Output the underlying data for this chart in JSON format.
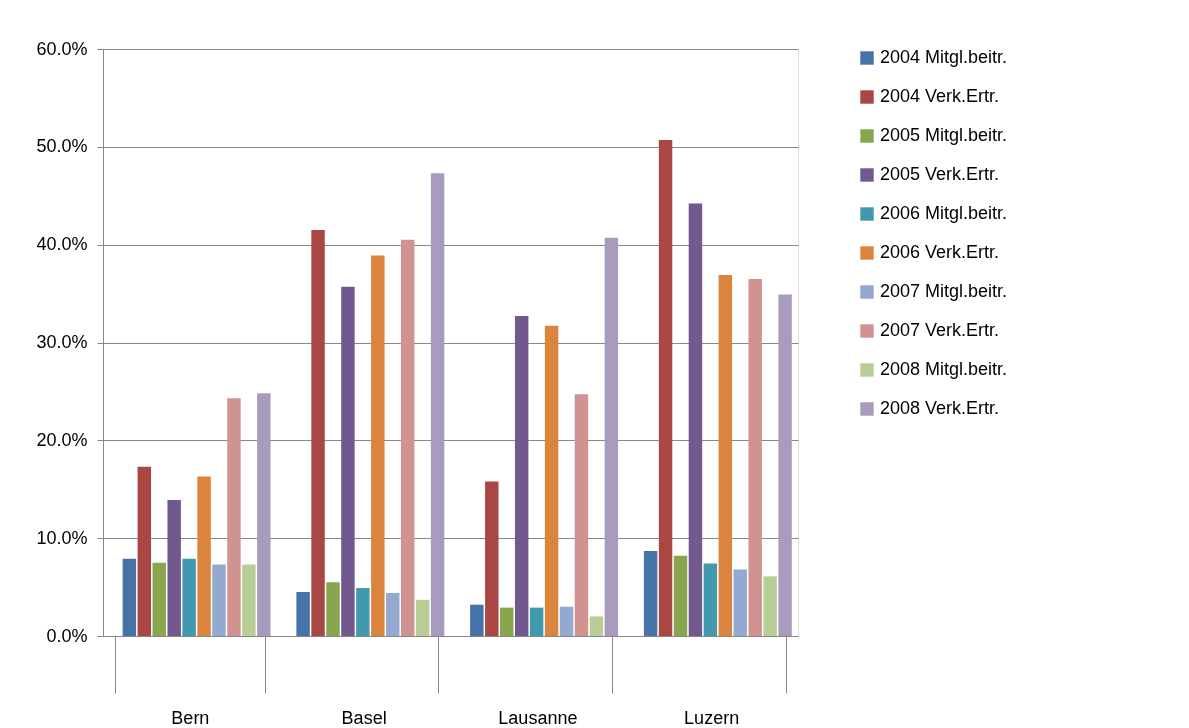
{
  "chart_data": {
    "type": "bar",
    "categories": [
      "Bern",
      "Basel",
      "Lausanne",
      "Luzern"
    ],
    "ylim": [
      0,
      60
    ],
    "yticks": [
      {
        "value": 0,
        "label": "0.0%"
      },
      {
        "value": 10,
        "label": "10.0%"
      },
      {
        "value": 20,
        "label": "20.0%"
      },
      {
        "value": 30,
        "label": "30.0%"
      },
      {
        "value": 40,
        "label": "40.0%"
      },
      {
        "value": 50,
        "label": "50.0%"
      },
      {
        "value": 60,
        "label": "60.0%"
      }
    ],
    "grid": "y",
    "legend": "right",
    "series": [
      {
        "name": "2004 Mitgl.beitr.",
        "color": "#4572a7",
        "values": [
          7.9,
          4.5,
          3.2,
          8.7
        ]
      },
      {
        "name": "2004 Verk.Ertr.",
        "color": "#aa4643",
        "values": [
          17.3,
          41.5,
          15.8,
          50.7
        ]
      },
      {
        "name": "2005 Mitgl.beitr.",
        "color": "#89a54e",
        "values": [
          7.5,
          5.5,
          2.9,
          8.2
        ]
      },
      {
        "name": "2005 Verk.Ertr.",
        "color": "#71588f",
        "values": [
          13.9,
          35.7,
          32.7,
          44.2
        ]
      },
      {
        "name": "2006 Mitgl.beitr.",
        "color": "#4198af",
        "values": [
          7.9,
          4.9,
          2.9,
          7.4
        ]
      },
      {
        "name": "2006 Verk.Ertr.",
        "color": "#db843d",
        "values": [
          16.3,
          38.9,
          31.7,
          36.9
        ]
      },
      {
        "name": "2007 Mitgl.beitr.",
        "color": "#93a9cf",
        "values": [
          7.3,
          4.4,
          3.0,
          6.8
        ]
      },
      {
        "name": "2007 Verk.Ertr.",
        "color": "#d19392",
        "values": [
          24.3,
          40.5,
          24.7,
          36.5
        ]
      },
      {
        "name": "2008 Mitgl.beitr.",
        "color": "#b9cd96",
        "values": [
          7.3,
          3.7,
          2.0,
          6.1
        ]
      },
      {
        "name": "2008 Verk.Ertr.",
        "color": "#a99bbd",
        "values": [
          24.8,
          47.3,
          40.7,
          34.9
        ]
      }
    ]
  }
}
